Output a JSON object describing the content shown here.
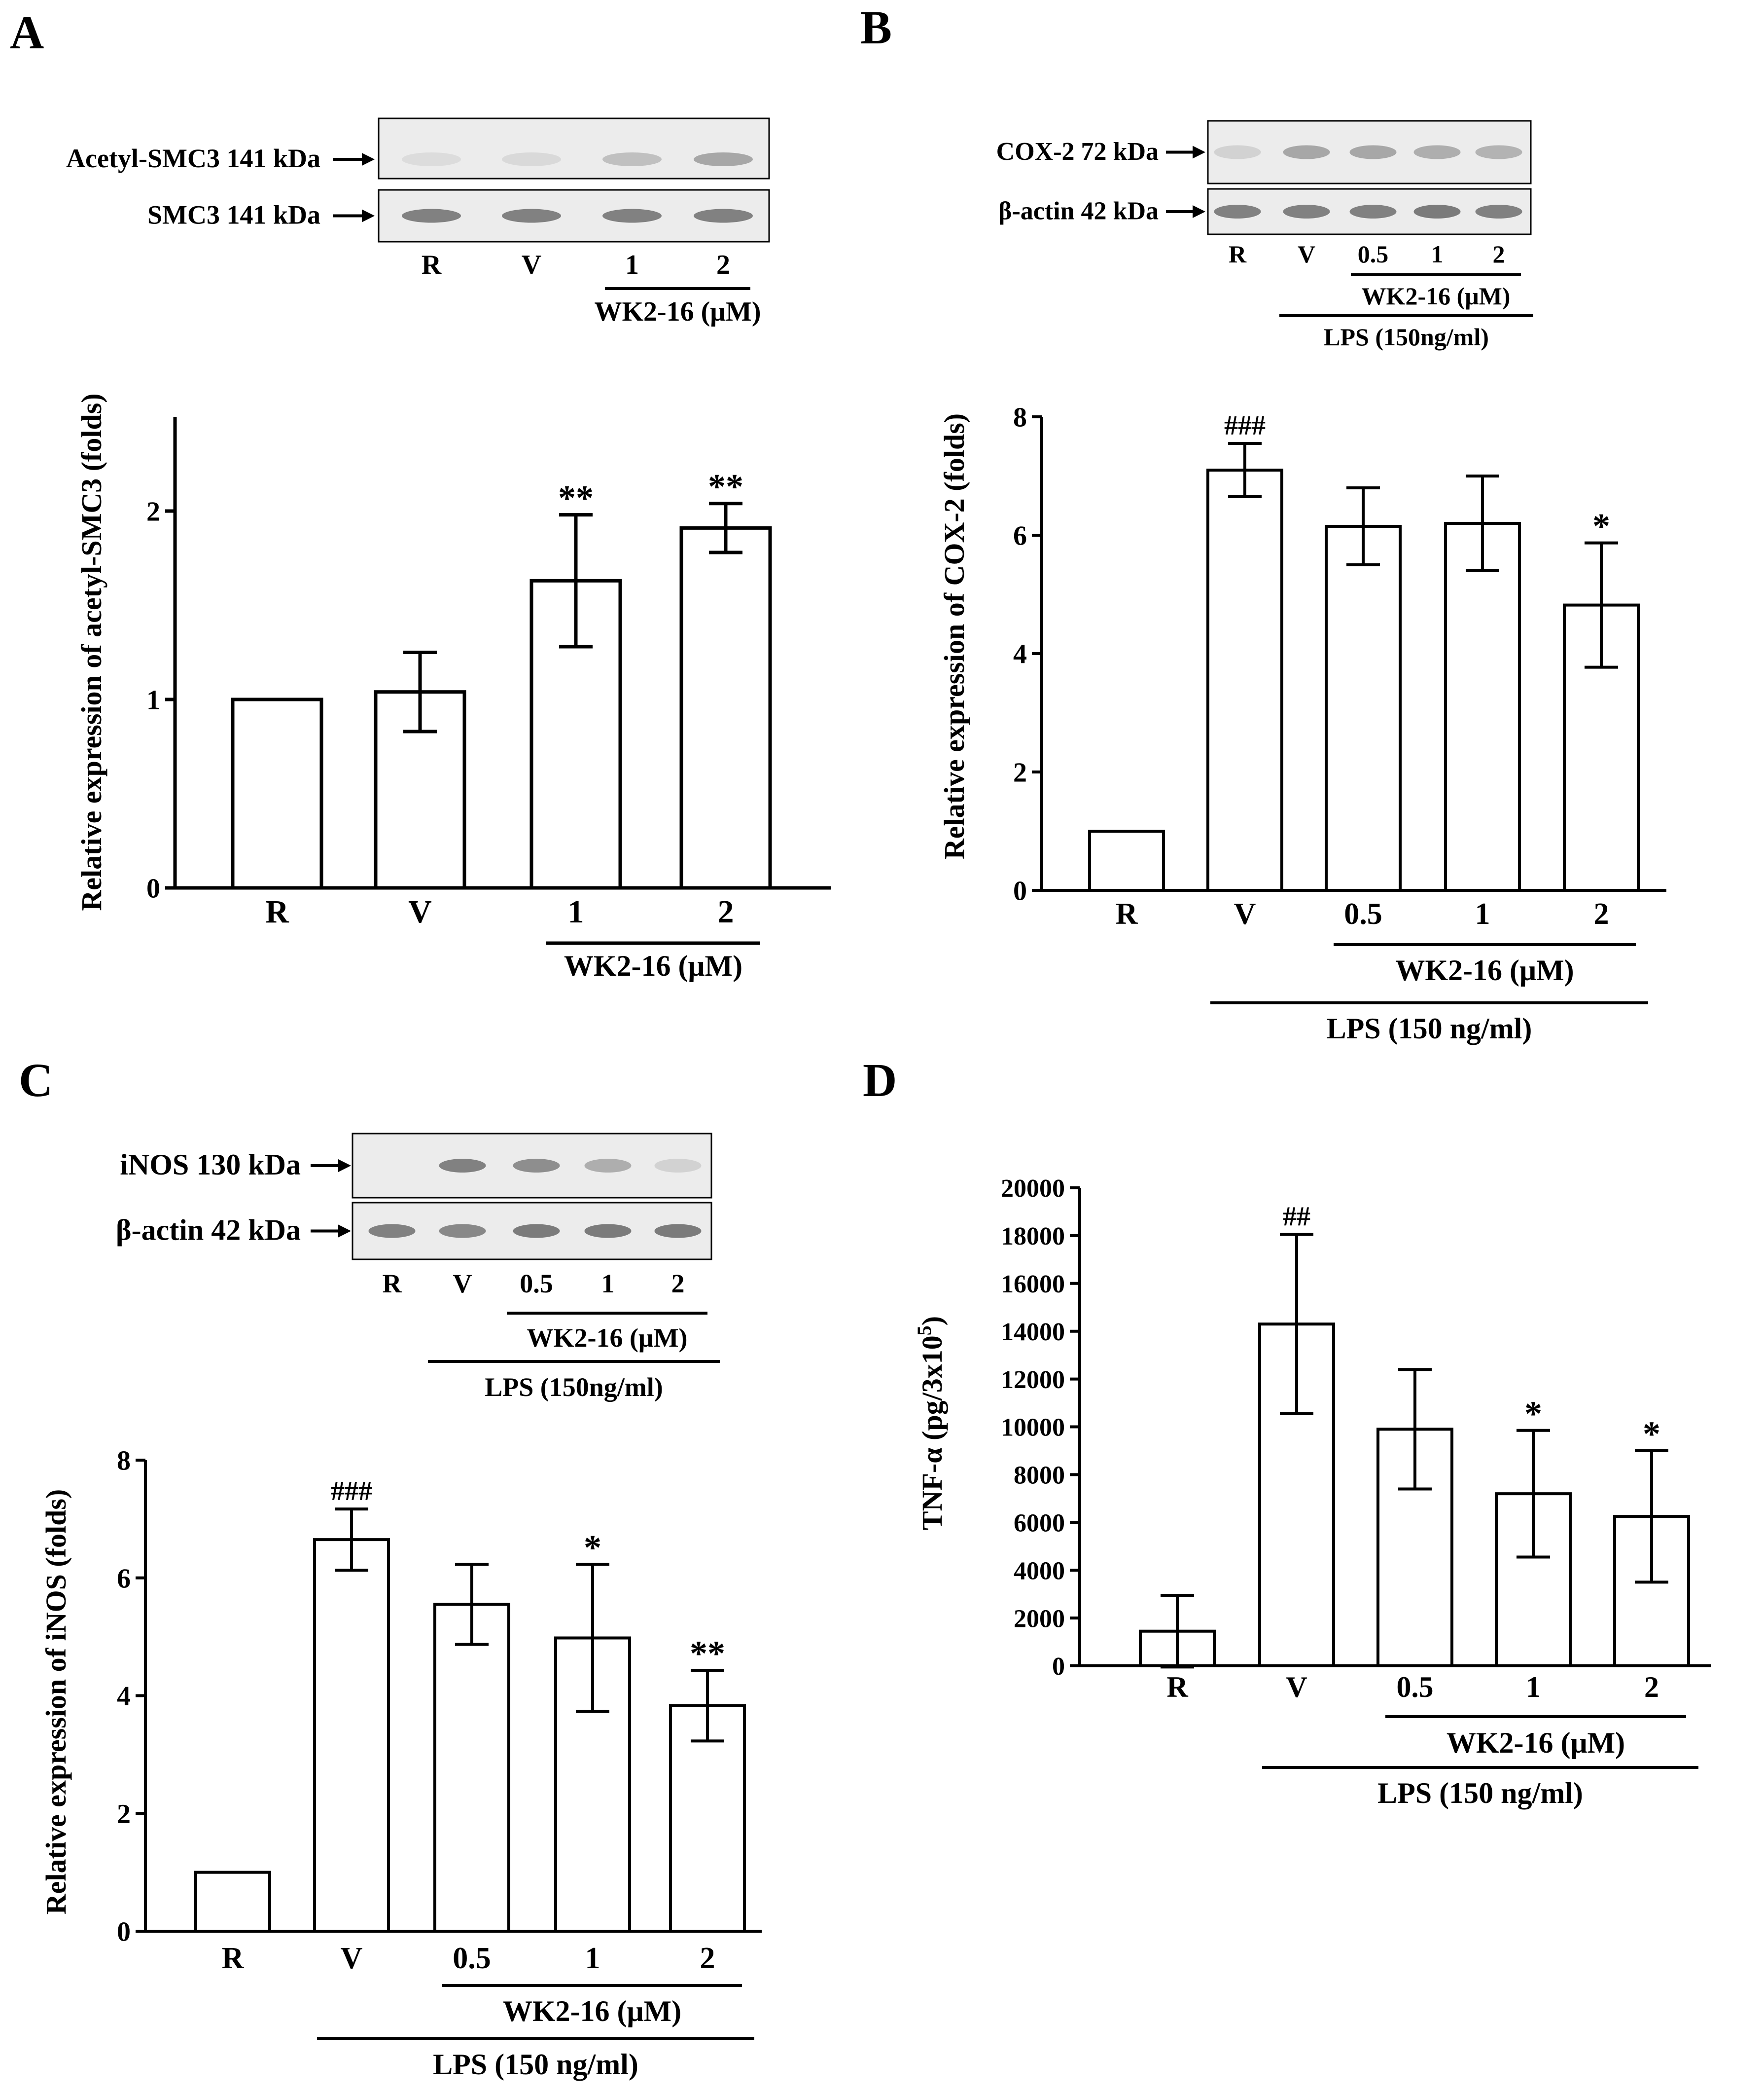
{
  "colors": {
    "ink": "#000000",
    "bar_fill": "#ffffff",
    "blot_bg": "#ececec",
    "band": "#6f6f6f"
  },
  "panels": [
    {
      "letter": "A",
      "blots": [
        {
          "label": "Acetyl-SMC3 141 kDa",
          "intensities": [
            0.12,
            0.15,
            0.35,
            0.55
          ]
        },
        {
          "label": "SMC3 141 kDa",
          "intensities": [
            0.85,
            0.85,
            0.85,
            0.85
          ]
        }
      ],
      "blot_lanes": [
        "R",
        "V",
        "1",
        "2"
      ],
      "blot_brackets": [
        {
          "text": "WK2-16 (μM)",
          "from": 2,
          "to": 3
        }
      ]
    },
    {
      "letter": "B",
      "blots": [
        {
          "label": "COX-2 72 kDa",
          "intensities": [
            0.2,
            0.55,
            0.55,
            0.5,
            0.45
          ]
        },
        {
          "label": "β-actin 42 kDa",
          "intensities": [
            0.85,
            0.85,
            0.85,
            0.9,
            0.85
          ]
        }
      ],
      "blot_lanes": [
        "R",
        "V",
        "0.5",
        "1",
        "2"
      ],
      "blot_brackets": [
        {
          "text": "WK2-16 (μM)",
          "from": 2,
          "to": 4
        },
        {
          "text": "LPS (150ng/ml)",
          "from": 1,
          "to": 4
        }
      ]
    },
    {
      "letter": "C",
      "blots": [
        {
          "label": "iNOS 130 kDa",
          "intensities": [
            0.0,
            0.85,
            0.75,
            0.5,
            0.2
          ]
        },
        {
          "label": "β-actin 42 kDa",
          "intensities": [
            0.85,
            0.8,
            0.9,
            0.9,
            0.9
          ]
        }
      ],
      "blot_lanes": [
        "R",
        "V",
        "0.5",
        "1",
        "2"
      ],
      "blot_brackets": [
        {
          "text": "WK2-16 (μM)",
          "from": 2,
          "to": 4
        },
        {
          "text": "LPS (150ng/ml)",
          "from": 1,
          "to": 4
        }
      ]
    },
    {
      "letter": "D"
    }
  ],
  "chart_data": [
    {
      "type": "bar",
      "panel": "A",
      "categories": [
        "R",
        "V",
        "1",
        "2"
      ],
      "values": [
        1.0,
        1.04,
        1.63,
        1.91
      ],
      "errors": [
        0,
        0.21,
        0.35,
        0.13
      ],
      "annotations": [
        "",
        "",
        "**",
        "**"
      ],
      "ylabel": "Relative expression of acetyl-SMC3 (folds)",
      "ylim": [
        0,
        2.5
      ],
      "yticks": [
        0,
        1,
        2
      ],
      "brackets": [
        {
          "text": "WK2-16 (μM)",
          "from": 2,
          "to": 3
        }
      ]
    },
    {
      "type": "bar",
      "panel": "B",
      "categories": [
        "R",
        "V",
        "0.5",
        "1",
        "2"
      ],
      "values": [
        1.0,
        7.1,
        6.15,
        6.2,
        4.82
      ],
      "errors": [
        0,
        0.45,
        0.65,
        0.8,
        1.05
      ],
      "annotations": [
        "",
        "###",
        "",
        "",
        "*"
      ],
      "ylabel": "Relative expression of COX-2 (folds)",
      "ylim": [
        0,
        8
      ],
      "yticks": [
        0,
        2,
        4,
        6,
        8
      ],
      "brackets": [
        {
          "text": "WK2-16 (μM)",
          "from": 2,
          "to": 4
        },
        {
          "text": "LPS (150 ng/ml)",
          "from": 1,
          "to": 4
        }
      ]
    },
    {
      "type": "bar",
      "panel": "C",
      "categories": [
        "R",
        "V",
        "0.5",
        "1",
        "2"
      ],
      "values": [
        1.0,
        6.65,
        5.55,
        4.98,
        3.83
      ],
      "errors": [
        0,
        0.52,
        0.68,
        1.25,
        0.6
      ],
      "annotations": [
        "",
        "###",
        "",
        "*",
        "**"
      ],
      "ylabel": "Relative expression of iNOS (folds)",
      "ylim": [
        0,
        8
      ],
      "yticks": [
        0,
        2,
        4,
        6,
        8
      ],
      "brackets": [
        {
          "text": "WK2-16 (μM)",
          "from": 2,
          "to": 4
        },
        {
          "text": "LPS (150 ng/ml)",
          "from": 1,
          "to": 4
        }
      ]
    },
    {
      "type": "bar",
      "panel": "D",
      "categories": [
        "R",
        "V",
        "0.5",
        "1",
        "2"
      ],
      "values": [
        1450,
        14300,
        9900,
        7200,
        6250
      ],
      "errors": [
        1500,
        3750,
        2500,
        2650,
        2750
      ],
      "annotations": [
        "",
        "##",
        "",
        "*",
        "*"
      ],
      "ylabel_main": "TNF-α (pg/3x10",
      "ylabel_sup": "5",
      "ylabel_tail": ")",
      "ylim": [
        0,
        20000
      ],
      "yticks": [
        0,
        2000,
        4000,
        6000,
        8000,
        10000,
        12000,
        14000,
        16000,
        18000,
        20000
      ],
      "brackets": [
        {
          "text": "WK2-16 (μM)",
          "from": 2,
          "to": 4
        },
        {
          "text": "LPS (150 ng/ml)",
          "from": 1,
          "to": 4
        }
      ]
    }
  ]
}
